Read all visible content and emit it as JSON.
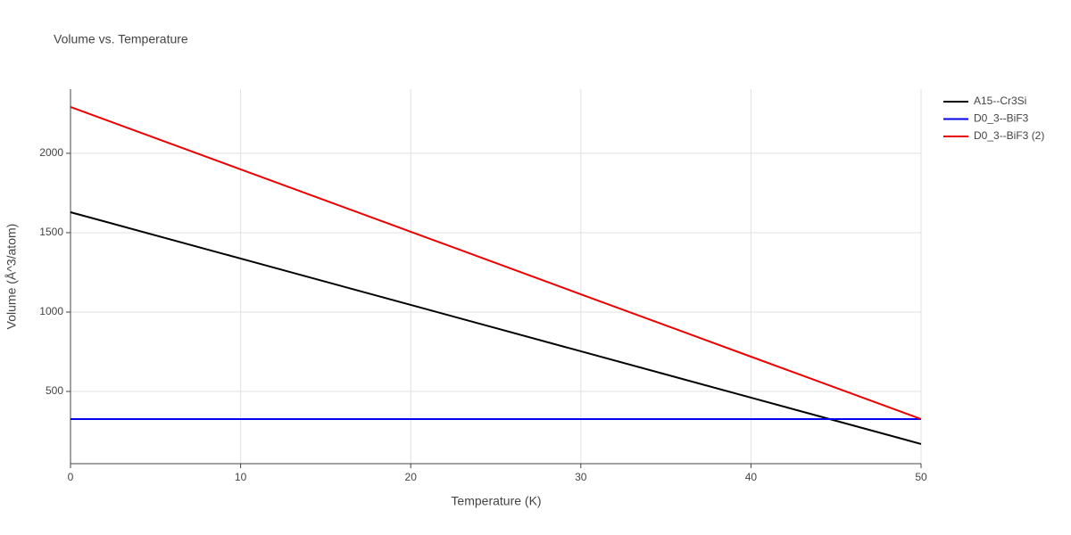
{
  "chart_data": {
    "type": "line",
    "title": "Volume vs. Temperature",
    "x_label": "Temperature (K)",
    "y_label": "Volume (Å^3/atom)",
    "x": [
      0,
      10,
      20,
      30,
      40,
      50
    ],
    "series": [
      {
        "name": "A15--Cr3Si",
        "color": "#000000",
        "values": [
          1629,
          1337,
          1045,
          753,
          461,
          169
        ]
      },
      {
        "name": "D0_3--BiF3",
        "color": "#0000ee",
        "values": [
          326,
          326,
          326,
          326,
          326,
          326
        ]
      },
      {
        "name": "D0_3--BiF3 (2)",
        "color": "#ee0000",
        "values": [
          2292,
          1899,
          1506,
          1112,
          719,
          326
        ]
      }
    ],
    "xlim": [
      0,
      50
    ],
    "xticks": [
      0,
      10,
      20,
      30,
      40,
      50
    ],
    "ylim": [
      45,
      2404
    ],
    "yticks": [
      500,
      1000,
      1500,
      2000
    ],
    "grid": true,
    "legend": "top-right"
  }
}
